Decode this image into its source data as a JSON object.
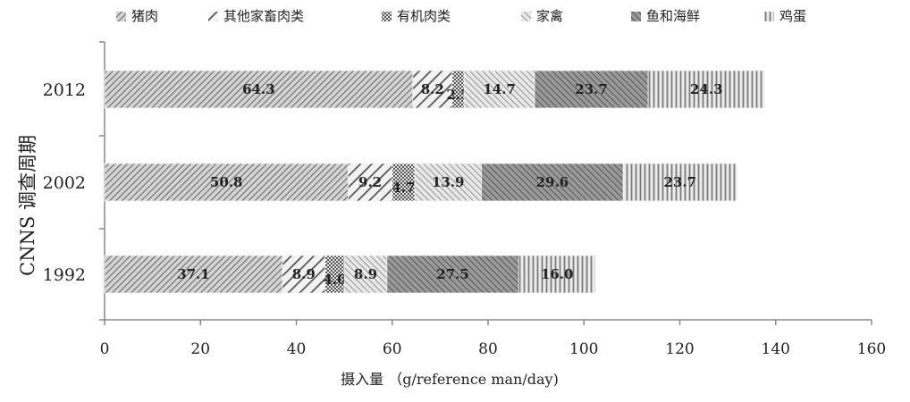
{
  "chart_data": {
    "type": "bar",
    "orientation": "horizontal",
    "stacked": true,
    "categories": [
      "2012",
      "2002",
      "1992"
    ],
    "series": [
      {
        "name": "猪肉",
        "values": [
          64.3,
          50.8,
          37.1
        ],
        "color": "#8a8a8a",
        "pattern": "diag-dense"
      },
      {
        "name": "其他家畜肉类",
        "values": [
          8.2,
          9.2,
          8.9
        ],
        "color": "#9a9a9a",
        "pattern": "diag-wide"
      },
      {
        "name": "有机肉类",
        "values": [
          2.5,
          4.7,
          4.0
        ],
        "color": "#7a7a7a",
        "pattern": "dots"
      },
      {
        "name": "家禽",
        "values": [
          14.7,
          13.9,
          8.9
        ],
        "color": "#a0a0a0",
        "pattern": "diag-back"
      },
      {
        "name": "鱼和海鲜",
        "values": [
          23.7,
          29.6,
          27.5
        ],
        "color": "#707070",
        "pattern": "diag-dark"
      },
      {
        "name": "鸡蛋",
        "values": [
          24.3,
          23.7,
          16.0
        ],
        "color": "#b5b5b5",
        "pattern": "vertical"
      }
    ],
    "xlabel": "摄入量 （g/reference man/day)",
    "ylabel": "CNNS 调查周期",
    "xlim": [
      0,
      160
    ],
    "xticks": [
      "0",
      "20",
      "40",
      "60",
      "80",
      "100",
      "120",
      "140",
      "160"
    ],
    "grid": false,
    "legend_position": "top"
  }
}
